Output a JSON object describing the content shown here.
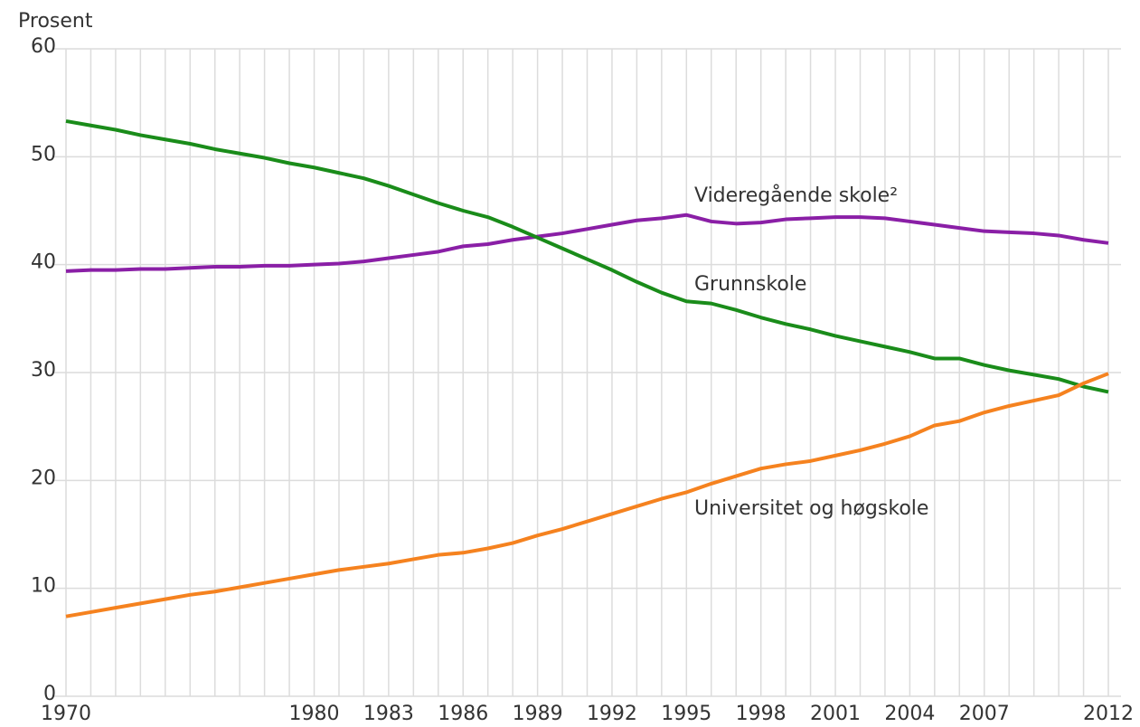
{
  "chart_data": {
    "type": "line",
    "y_label": "Prosent",
    "x": [
      1970,
      1971,
      1972,
      1973,
      1974,
      1975,
      1976,
      1977,
      1978,
      1979,
      1980,
      1981,
      1982,
      1983,
      1984,
      1985,
      1986,
      1987,
      1988,
      1989,
      1990,
      1991,
      1992,
      1993,
      1994,
      1995,
      1996,
      1997,
      1998,
      1999,
      2000,
      2001,
      2002,
      2003,
      2004,
      2005,
      2006,
      2007,
      2008,
      2009,
      2010,
      2011,
      2012
    ],
    "series": [
      {
        "name": "Videregående skole²",
        "color": "#8a1fa6",
        "values": [
          39.4,
          39.5,
          39.5,
          39.6,
          39.6,
          39.7,
          39.8,
          39.8,
          39.9,
          39.9,
          40.0,
          40.1,
          40.3,
          40.6,
          40.9,
          41.2,
          41.7,
          41.9,
          42.3,
          42.6,
          42.9,
          43.3,
          43.7,
          44.1,
          44.3,
          44.6,
          44.0,
          43.8,
          43.9,
          44.2,
          44.3,
          44.4,
          44.4,
          44.3,
          44.0,
          43.7,
          43.4,
          43.1,
          43.0,
          42.9,
          42.7,
          42.3,
          42.0
        ]
      },
      {
        "name": "Grunnskole",
        "color": "#1a8c1a",
        "values": [
          53.3,
          52.9,
          52.5,
          52.0,
          51.6,
          51.2,
          50.7,
          50.3,
          49.9,
          49.4,
          49.0,
          48.5,
          48.0,
          47.3,
          46.5,
          45.7,
          45.0,
          44.4,
          43.5,
          42.5,
          41.5,
          40.5,
          39.5,
          38.4,
          37.4,
          36.6,
          36.4,
          35.8,
          35.1,
          34.5,
          34.0,
          33.4,
          32.9,
          32.4,
          31.9,
          31.3,
          31.3,
          30.7,
          30.2,
          29.8,
          29.4,
          28.7,
          28.2
        ]
      },
      {
        "name": "Universitet og høgskole",
        "color": "#f5821f",
        "values": [
          7.4,
          7.8,
          8.2,
          8.6,
          9.0,
          9.4,
          9.7,
          10.1,
          10.5,
          10.9,
          11.3,
          11.7,
          12.0,
          12.3,
          12.7,
          13.1,
          13.3,
          13.7,
          14.2,
          14.9,
          15.5,
          16.2,
          16.9,
          17.6,
          18.3,
          18.9,
          19.7,
          20.4,
          21.1,
          21.5,
          21.8,
          22.3,
          22.8,
          23.4,
          24.1,
          25.1,
          25.5,
          26.3,
          26.9,
          27.4,
          27.9,
          29.0,
          29.9
        ]
      }
    ],
    "xlim": [
      1970,
      2012
    ],
    "xticks": [
      1970,
      1980,
      1983,
      1986,
      1989,
      1992,
      1995,
      1998,
      2001,
      2004,
      2007,
      2012
    ],
    "ylim": [
      0,
      60
    ],
    "yticks": [
      0,
      10,
      20,
      30,
      40,
      50,
      60
    ],
    "grid": true
  }
}
